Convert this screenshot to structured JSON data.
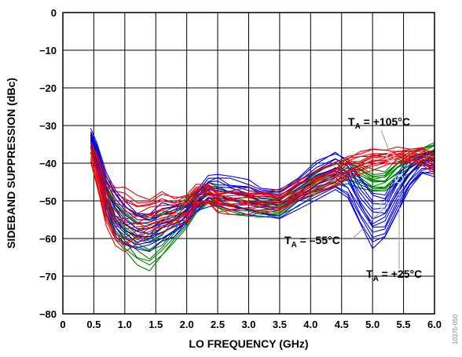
{
  "chart_data": {
    "type": "line",
    "xlabel": "LO FREQUENCY (GHz)",
    "ylabel": "SIDEBAND SUPPRESSION (dBc)",
    "xlim": [
      0,
      6
    ],
    "ylim": [
      -80,
      0
    ],
    "x_ticks": [
      "0",
      "0.5",
      "1.0",
      "1.5",
      "2.0",
      "2.5",
      "3.0",
      "3.5",
      "4.0",
      "4.5",
      "5.0",
      "5.5",
      "6.0"
    ],
    "y_ticks": [
      "0",
      "−10",
      "−20",
      "−30",
      "−40",
      "−50",
      "−60",
      "−70",
      "−80"
    ],
    "grid": true,
    "figure_id": "10375-050",
    "x": [
      0.45,
      0.55,
      0.7,
      0.85,
      1.0,
      1.2,
      1.4,
      1.6,
      1.8,
      2.0,
      2.15,
      2.35,
      2.5,
      2.7,
      3.0,
      3.2,
      3.5,
      3.8,
      4.1,
      4.4,
      4.6,
      4.8,
      5.0,
      5.2,
      5.4,
      5.6,
      5.8,
      6.0
    ],
    "series": [
      {
        "color": "#e8000b",
        "annotation": {
          "prefix": "T",
          "sub": "A",
          "text": " = +105°C"
        },
        "values": [
          -37,
          -42,
          -50,
          -54,
          -55,
          -55,
          -54,
          -53,
          -53,
          -52,
          -49,
          -48,
          -50,
          -50,
          -50,
          -50,
          -50,
          -47,
          -45,
          -43,
          -41,
          -40,
          -39,
          -38.5,
          -38,
          -38,
          -38,
          -40
        ],
        "spread": [
          3,
          4,
          6,
          8,
          8,
          6,
          5,
          5,
          4,
          4,
          3,
          3,
          3,
          3,
          3,
          3,
          3,
          3,
          3,
          3,
          2.5,
          2.5,
          2.5,
          2,
          2,
          2,
          2,
          3
        ]
      },
      {
        "color": "#0000e6",
        "annotation": {
          "prefix": "T",
          "sub": "A",
          "text": " = –55°C"
        },
        "values": [
          -33,
          -38,
          -48,
          -53,
          -56,
          -58,
          -58,
          -56,
          -55,
          -53,
          -50,
          -47,
          -47,
          -48,
          -49,
          -50,
          -51,
          -48,
          -44,
          -42,
          -44,
          -50,
          -55,
          -54,
          -48,
          -43,
          -40,
          -40
        ],
        "spread": [
          2,
          3,
          5,
          6,
          6,
          5,
          5,
          5,
          4,
          3,
          3,
          4,
          4,
          4,
          4,
          4,
          4,
          4,
          5,
          5,
          5,
          6,
          7,
          6,
          5,
          4,
          3,
          3
        ]
      },
      {
        "color": "#008000",
        "annotation": {
          "prefix": "T",
          "sub": "A",
          "text": " = +25°C"
        },
        "values": [
          -34,
          -39,
          -48,
          -54,
          -57,
          -60,
          -61,
          -59,
          -56,
          -53,
          -50,
          -48,
          -49,
          -50,
          -51,
          -51,
          -51,
          -48,
          -45,
          -43,
          -42,
          -43,
          -45,
          -45,
          -42,
          -40,
          -38,
          -37
        ],
        "spread": [
          2,
          3,
          5,
          6,
          6,
          7,
          7,
          6,
          5,
          4,
          3,
          3,
          3,
          3,
          3,
          3,
          3,
          3,
          3,
          3,
          3,
          3,
          3,
          3,
          3,
          3,
          2,
          2
        ]
      }
    ]
  }
}
